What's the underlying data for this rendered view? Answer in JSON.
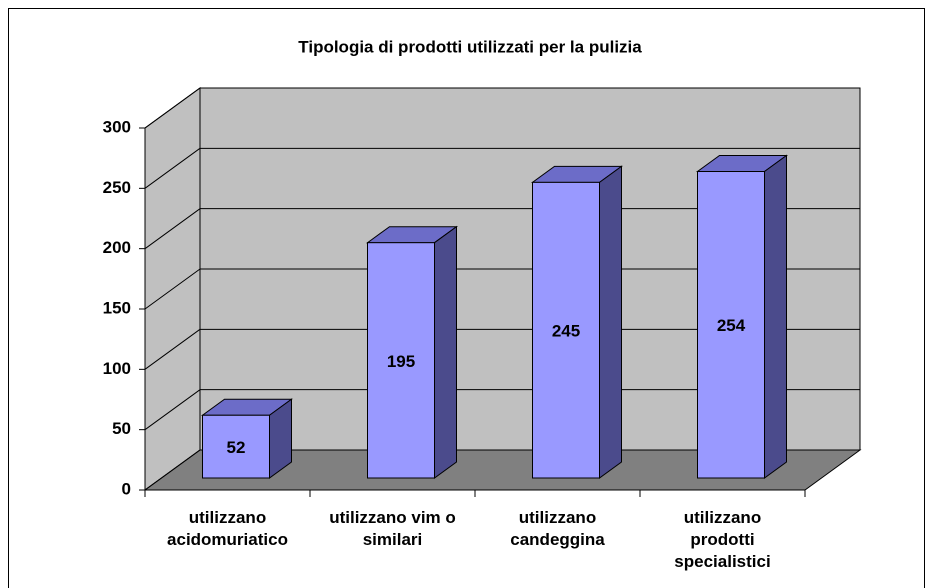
{
  "chart_data": {
    "type": "bar3d",
    "title": "Tipologia di prodotti utilizzati per la pulizia",
    "categories": [
      "utilizzano\nacidomuriatico",
      "utilizzano vim o\nsimilari",
      "utilizzano\ncandeggina",
      "utilizzano\nprodotti\nspecialistici"
    ],
    "values": [
      52,
      195,
      245,
      254
    ],
    "color": "#9999ff",
    "ylim": [
      0,
      300
    ],
    "yticks": [
      0,
      50,
      100,
      150,
      200,
      250,
      300
    ],
    "grid": true
  }
}
